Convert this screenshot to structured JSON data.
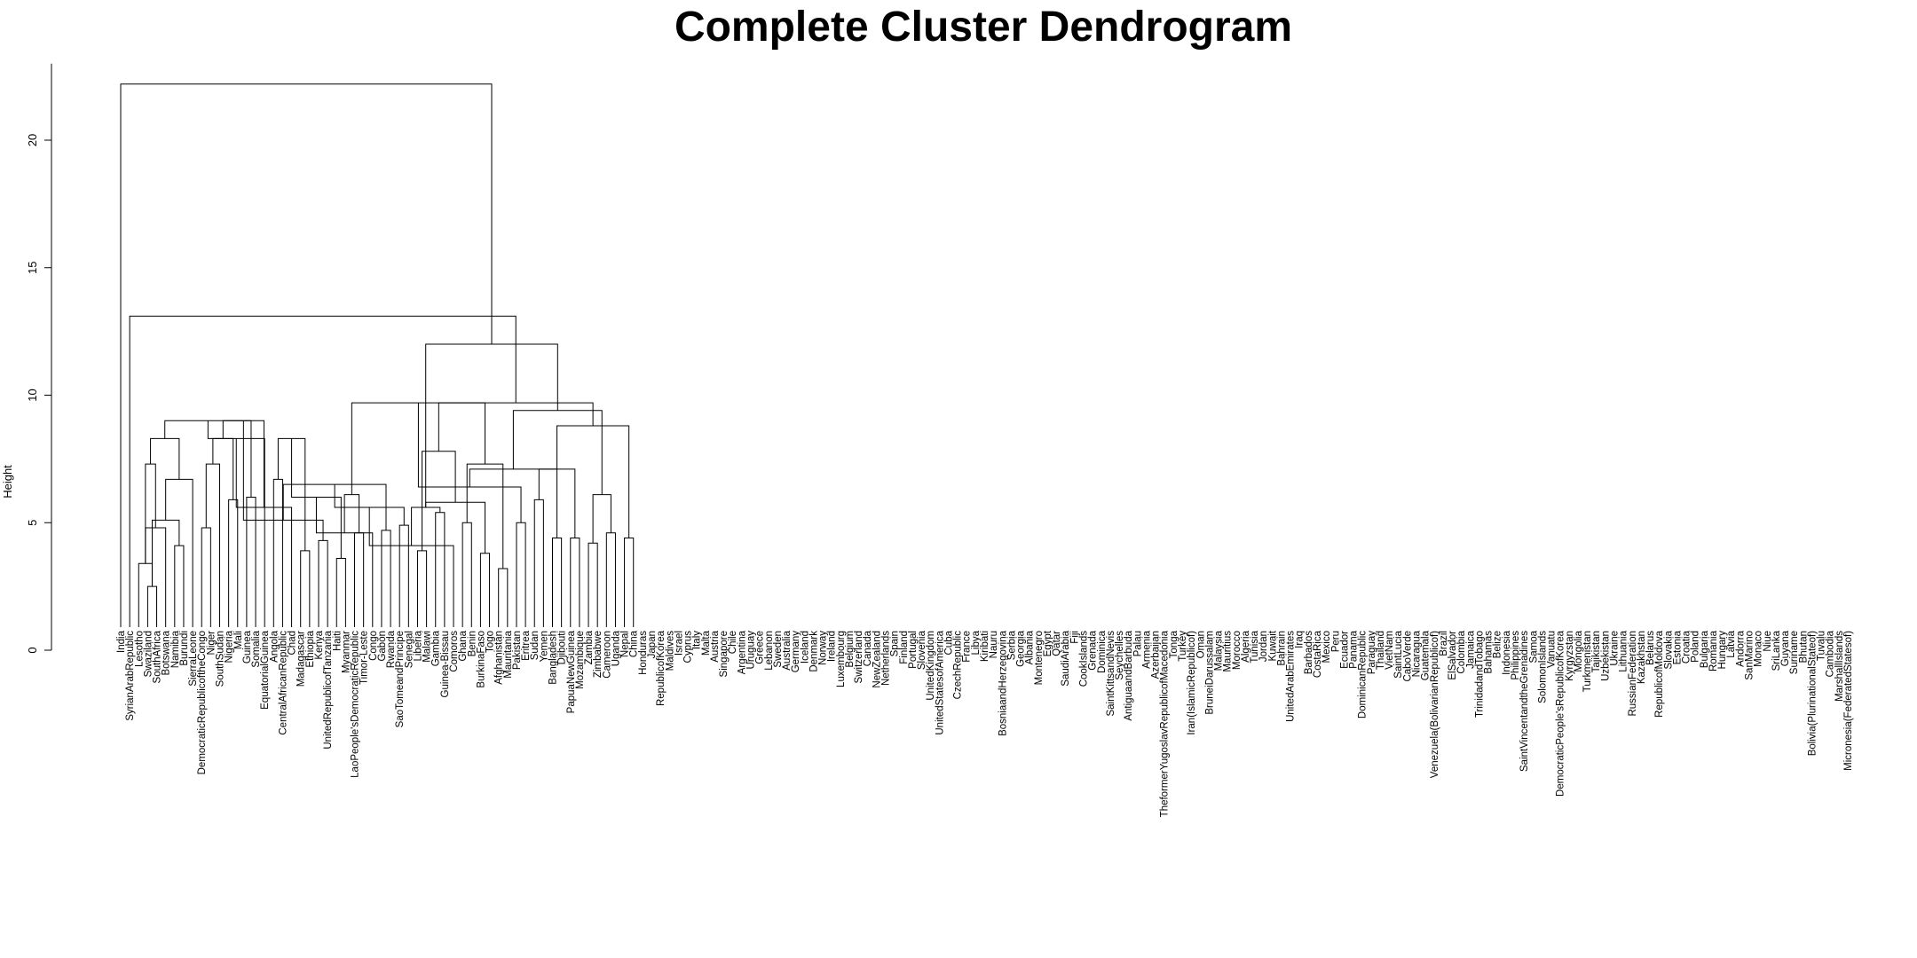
{
  "chart_data": {
    "type": "dendrogram",
    "title": "Complete Cluster Dendrogram",
    "ylabel": "Height",
    "ylim": [
      0,
      23
    ],
    "yticks": [
      0,
      5,
      10,
      15,
      20
    ],
    "grid": false,
    "legend": "none",
    "leaves": [
      "India",
      "SyrianArabRepublic",
      "Lesotho",
      "Swaziland",
      "SouthAfrica",
      "Botswana",
      "Namibia",
      "Burundi",
      "SierraLeone",
      "DemocraticRepublicoftheCongo",
      "Niger",
      "SouthSudan",
      "Nigeria",
      "Mali",
      "Guinea",
      "Somalia",
      "EquatorialGuinea",
      "Angola",
      "CentralAfricanRepublic",
      "Chad",
      "Madagascar",
      "Ethiopia",
      "Kenya",
      "UnitedRepublicofTanzania",
      "Haiti",
      "Myanmar",
      "LaoPeople'sDemocraticRepublic",
      "Timor-Leste",
      "Congo",
      "Gabon",
      "Rwanda",
      "SaoTomeandPrincipe",
      "Senegal",
      "Liberia",
      "Malawi",
      "Gambia",
      "Guinea-Bissau",
      "Comoros",
      "Ghana",
      "Benin",
      "BurkinaFaso",
      "Togo",
      "Afghanistan",
      "Mauritania",
      "Pakistan",
      "Eritrea",
      "Sudan",
      "Yemen",
      "Bangladesh",
      "Djibouti",
      "PapuaNewGuinea",
      "Mozambique",
      "Zambia",
      "Zimbabwe",
      "Cameroon",
      "Uganda",
      "Nepal",
      "China",
      "Honduras",
      "Japan",
      "RepublicofKorea",
      "Maldives",
      "Israel",
      "Cyprus",
      "Italy",
      "Malta",
      "Austria",
      "Singapore",
      "Chile",
      "Argentina",
      "Uruguay",
      "Greece",
      "Lebanon",
      "Sweden",
      "Australia",
      "Germany",
      "Iceland",
      "Denmark",
      "Norway",
      "Ireland",
      "Luxembourg",
      "Belgium",
      "Switzerland",
      "Canada",
      "NewZealand",
      "Netherlands",
      "Spain",
      "Finland",
      "Portugal",
      "Slovenia",
      "UnitedKingdom",
      "UnitedStatesofAmerica",
      "Cuba",
      "CzechRepublic",
      "France",
      "Libya",
      "Kiribati",
      "Nauru",
      "BosniaandHerzegovina",
      "Serbia",
      "Georgia",
      "Albania",
      "Montenegro",
      "Egypt",
      "Qatar",
      "SaudiArabia",
      "Fiji",
      "CookIslands",
      "Grenada",
      "Dominica",
      "SaintKittsandNevis",
      "Seychelles",
      "AntiguaandBarbuda",
      "Palau",
      "Armenia",
      "Azerbaijan",
      "TheformerYugoslavRepublicofMacedonia",
      "Tonga",
      "Turkey",
      "Iran(IslamicRepublicof)",
      "Oman",
      "BruneiDarussalam",
      "Malaysia",
      "Mauritius",
      "Morocco",
      "Algeria",
      "Tunisia",
      "Jordan",
      "Kuwait",
      "Bahrain",
      "UnitedArabEmirates",
      "Iraq",
      "Barbados",
      "CostaRica",
      "Mexico",
      "Peru",
      "Ecuador",
      "Panama",
      "DominicanRepublic",
      "Paraguay",
      "Thailand",
      "VietNam",
      "SaintLucia",
      "CaboVerde",
      "Nicaragua",
      "Guatemala",
      "Venezuela(BolivarianRepublicof)",
      "Brazil",
      "ElSalvador",
      "Colombia",
      "Jamaica",
      "TrinidadandTobago",
      "Bahamas",
      "Belize",
      "Indonesia",
      "Philippines",
      "SaintVincentandtheGrenadines",
      "Samoa",
      "SolomonIslands",
      "Vanuatu",
      "DemocraticPeople'sRepublicofKorea",
      "Kyrgyzstan",
      "Mongolia",
      "Turkmenistan",
      "Tajikistan",
      "Uzbekistan",
      "Ukraine",
      "Lithuania",
      "RussianFederation",
      "Kazakhstan",
      "Belarus",
      "RepublicofMoldova",
      "Slovakia",
      "Estonia",
      "Croatia",
      "Poland",
      "Bulgaria",
      "Romania",
      "Hungary",
      "Latvia",
      "Andorra",
      "SanMarino",
      "Monaco",
      "Niue",
      "SriLanka",
      "Guyana",
      "Suriname",
      "Bhutan",
      "Bolivia(PlurinationalStateof)",
      "Tuvalu",
      "Cambodia",
      "MarshallIslands",
      "Micronesia(FederatedStatesof)"
    ],
    "merges": [
      [
        3,
        4,
        2.5
      ],
      [
        2,
        100000,
        3.4
      ],
      [
        6,
        7,
        4.1
      ],
      [
        5,
        100001,
        4.8
      ],
      [
        100000,
        100002,
        5.1
      ],
      [
        100001,
        100003,
        7.3
      ],
      [
        9,
        10,
        4.8
      ],
      [
        8,
        100004,
        6.7
      ],
      [
        12,
        13,
        5.9
      ],
      [
        11,
        100006,
        7.3
      ],
      [
        14,
        15,
        6.0
      ],
      [
        100005,
        100007,
        8.3
      ],
      [
        100008,
        100009,
        8.3
      ],
      [
        100010,
        100011,
        9.0
      ],
      [
        17,
        18,
        6.7
      ],
      [
        16,
        100013,
        8.3
      ],
      [
        20,
        21,
        3.9
      ],
      [
        19,
        100015,
        5.6
      ],
      [
        100014,
        100016,
        8.3
      ],
      [
        100012,
        100017,
        9.0
      ],
      [
        22,
        23,
        4.3
      ],
      [
        24,
        25,
        3.6
      ],
      [
        100019,
        100020,
        5.1
      ],
      [
        100018,
        100021,
        6.0
      ],
      [
        26,
        27,
        4.6
      ],
      [
        28,
        100023,
        4.6
      ],
      [
        29,
        30,
        4.7
      ],
      [
        100024,
        100025,
        6.1
      ],
      [
        100022,
        100026,
        6.5
      ],
      [
        31,
        32,
        4.9
      ],
      [
        33,
        34,
        3.9
      ],
      [
        100028,
        100029,
        5.6
      ],
      [
        35,
        36,
        5.4
      ],
      [
        37,
        100031,
        4.1
      ],
      [
        38,
        39,
        5.0
      ],
      [
        100032,
        100033,
        5.6
      ],
      [
        40,
        41,
        3.8
      ],
      [
        42,
        43,
        3.2
      ],
      [
        100035,
        100036,
        5.8
      ],
      [
        100034,
        100037,
        7.3
      ],
      [
        100030,
        100038,
        7.8
      ],
      [
        100027,
        100039,
        9.7
      ],
      [
        44,
        45,
        5.0
      ],
      [
        46,
        47,
        5.9
      ],
      [
        100041,
        100042,
        6.4
      ],
      [
        48,
        49,
        4.4
      ],
      [
        50,
        51,
        4.4
      ],
      [
        100044,
        100045,
        7.1
      ],
      [
        100043,
        100046,
        7.1
      ],
      [
        52,
        53,
        4.2
      ],
      [
        54,
        55,
        4.6
      ],
      [
        56,
        57,
        4.4
      ],
      [
        100049,
        100050,
        6.1
      ],
      [
        100048,
        100051,
        8.8
      ],
      [
        100047,
        100052,
        9.4
      ],
      [
        100040,
        100053,
        9.7
      ],
      [
        100035,
        100054,
        12.0
      ],
      [
        1,
        100055,
        13.1
      ],
      [
        0,
        100056,
        22.2
      ]
    ]
  }
}
